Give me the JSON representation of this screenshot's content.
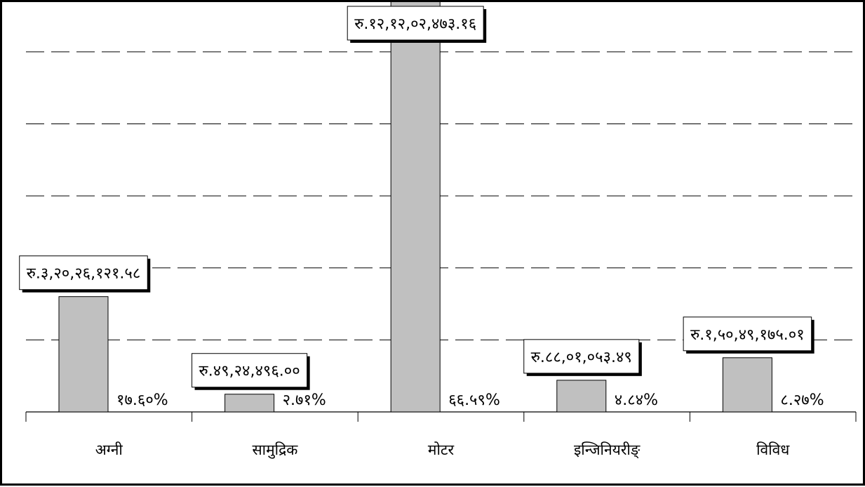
{
  "chart_data": {
    "type": "bar",
    "title": "",
    "xlabel": "",
    "ylabel": "",
    "grid": true,
    "ylim": [
      0,
      130000000
    ],
    "categories": [
      "अग्नी",
      "सामुद्रिक",
      "मोटर",
      "इन्जिनियरीङ्",
      "विविध"
    ],
    "values": [
      32026121.58,
      4924496.0,
      121202473.16,
      8801053.49,
      15049175.01
    ],
    "value_labels": [
      "रु.३,२०,२६,१२१.५८",
      "रु.४९,२४,४९६.००",
      "रु.१२,१२,०२,४७३.१६",
      "रु.८८,०१,०५३.४९",
      "रु.१,५०,४९,१७५.०१"
    ],
    "percent_labels": [
      "१७.६०%",
      "२.७१%",
      "६६.५९%",
      "४.८४%",
      "८.२७%"
    ],
    "colors": {
      "bar": "#c0c0c0",
      "bar_stroke": "#000000",
      "grid": "#000000"
    }
  }
}
